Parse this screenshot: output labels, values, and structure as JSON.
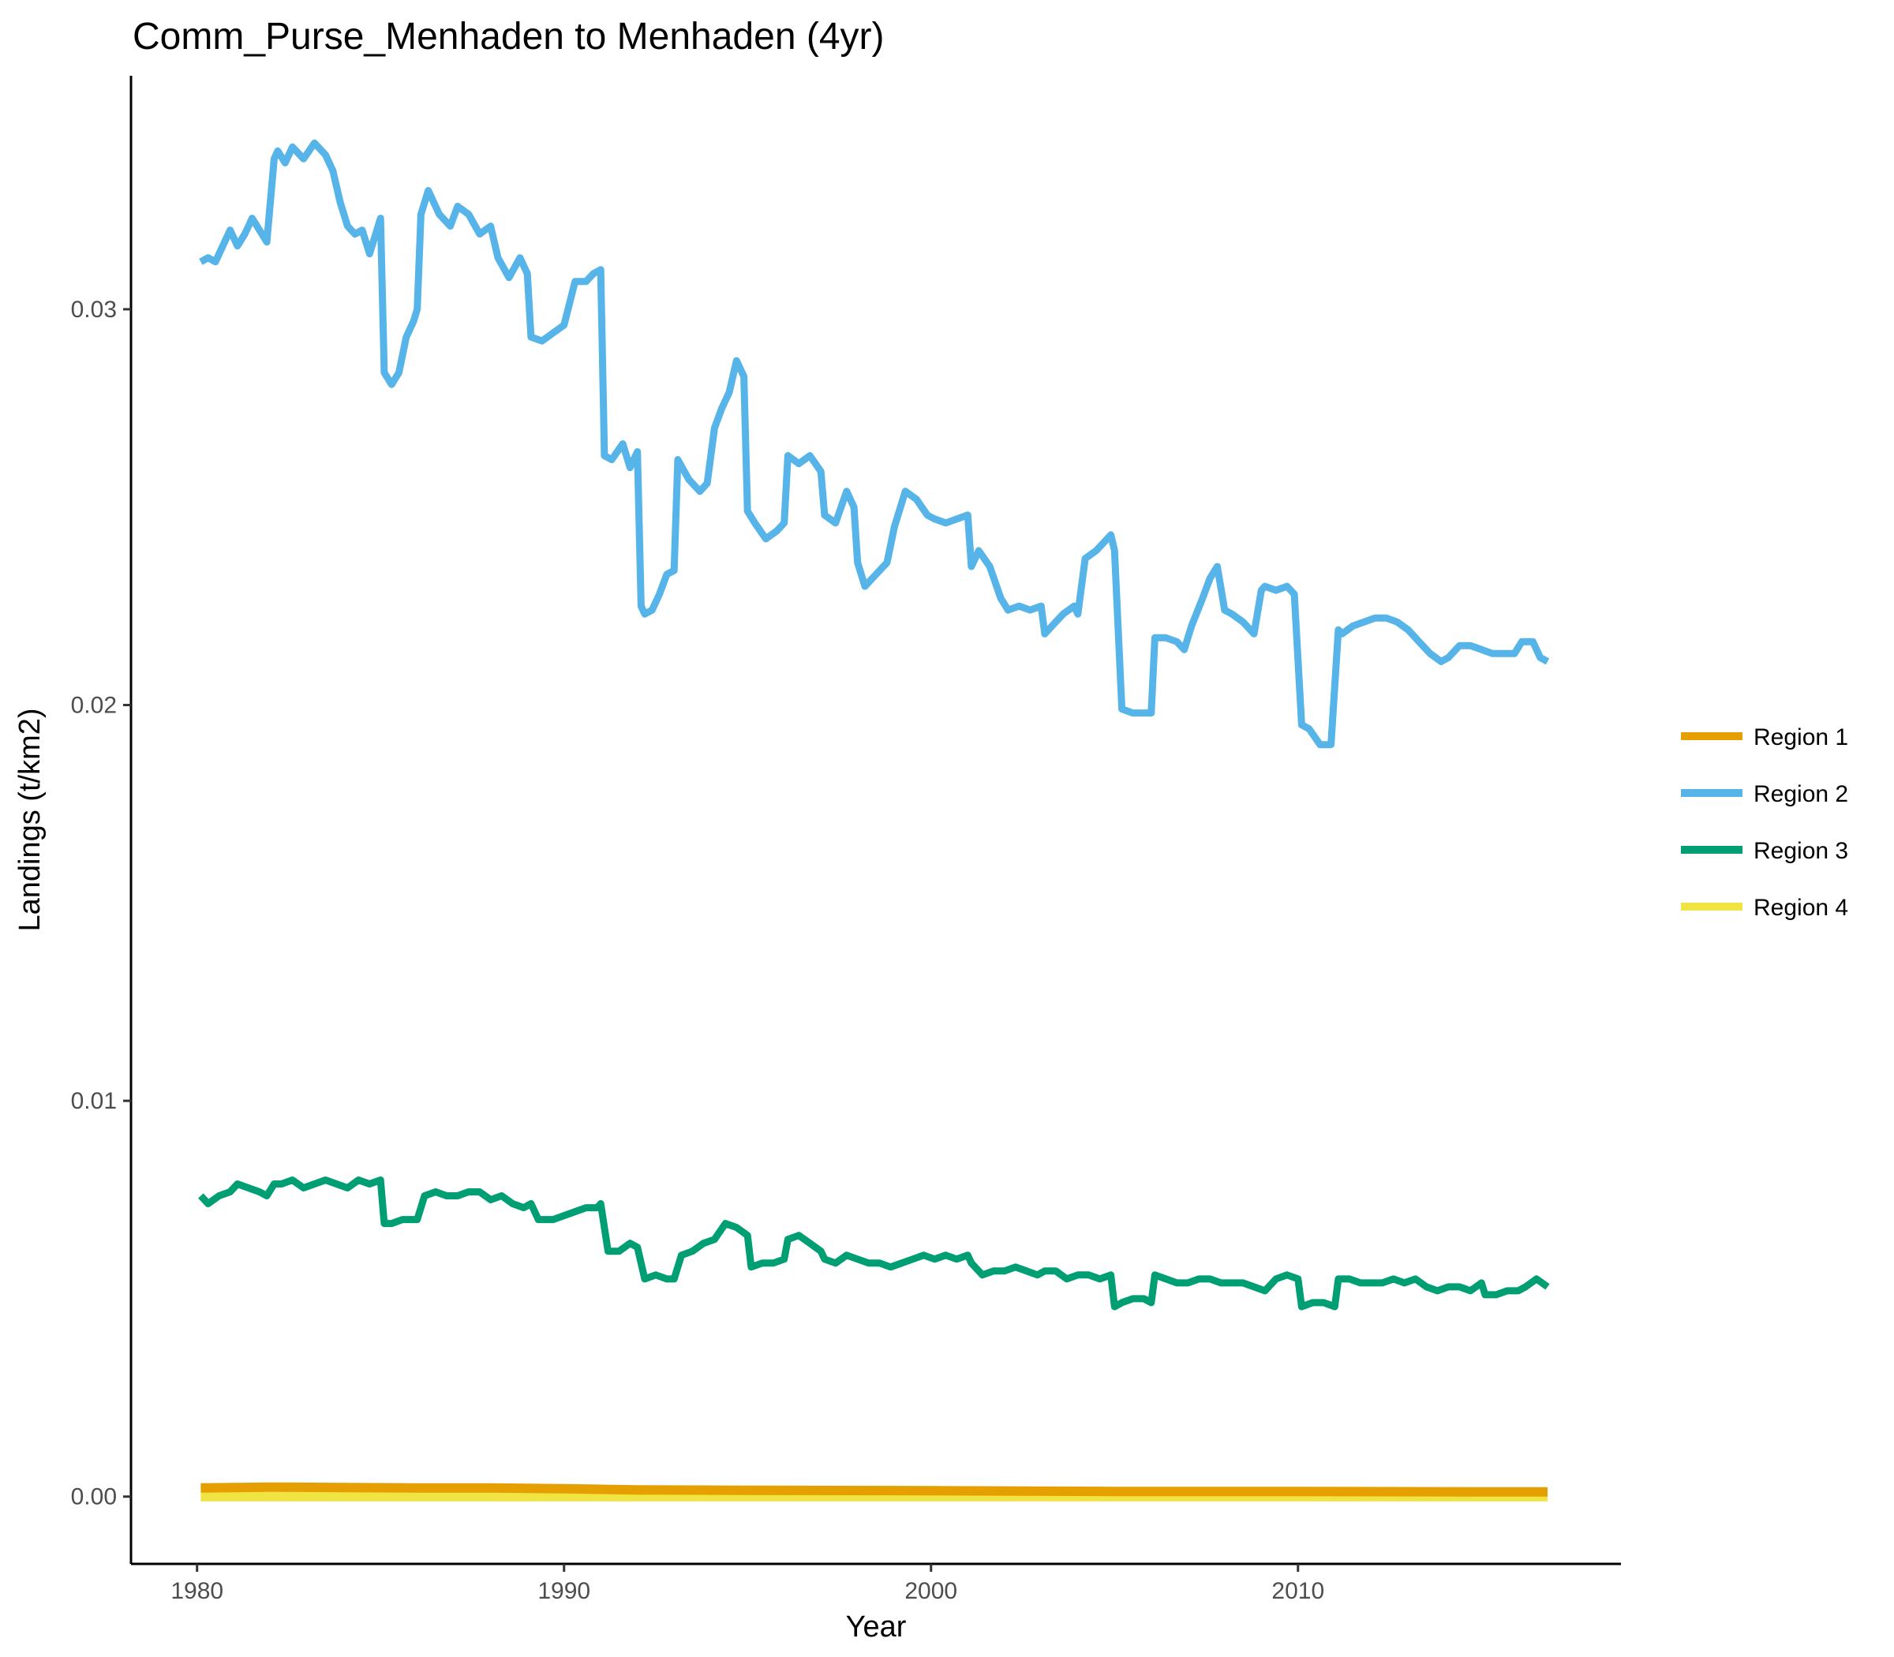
{
  "chart_data": {
    "type": "line",
    "title": "Comm_Purse_Menhaden to Menhaden (4yr)",
    "xlabel": "Year",
    "ylabel": "Landings (t/km2)",
    "xlim": [
      1978.2,
      2018.8
    ],
    "ylim": [
      -0.0017,
      0.0359
    ],
    "x_ticks": [
      1980,
      1990,
      2000,
      2010
    ],
    "x_tick_labels": [
      "1980",
      "1990",
      "2000",
      "2010"
    ],
    "y_ticks": [
      0.0,
      0.01,
      0.02,
      0.03
    ],
    "y_tick_labels": [
      "0.00",
      "0.01",
      "0.02",
      "0.03"
    ],
    "grid": false,
    "legend_position": "right",
    "series": [
      {
        "name": "Region 1",
        "color": "#E69F00",
        "x": [
          1980.1,
          1982,
          1984,
          1986,
          1988,
          1990,
          1992,
          1995,
          2000,
          2005,
          2010,
          2015,
          2016.8
        ],
        "y": [
          0.00022,
          0.00024,
          0.00023,
          0.00022,
          0.00022,
          0.0002,
          0.00017,
          0.00016,
          0.00015,
          0.00013,
          0.00013,
          0.00012,
          0.00012
        ]
      },
      {
        "name": "Region 2",
        "color": "#56B4E9",
        "x": [
          1980.1,
          1980.3,
          1980.5,
          1980.7,
          1980.9,
          1981.1,
          1981.3,
          1981.5,
          1981.7,
          1981.9,
          1982.1,
          1982.2,
          1982.4,
          1982.6,
          1982.9,
          1983.2,
          1983.5,
          1983.7,
          1983.9,
          1984.1,
          1984.3,
          1984.5,
          1984.7,
          1984.9,
          1985.0,
          1985.1,
          1985.3,
          1985.5,
          1985.7,
          1985.9,
          1986.0,
          1986.1,
          1986.3,
          1986.6,
          1986.9,
          1987.1,
          1987.4,
          1987.7,
          1988.0,
          1988.2,
          1988.5,
          1988.8,
          1989.0,
          1989.1,
          1989.4,
          1989.7,
          1990.0,
          1990.3,
          1990.6,
          1990.8,
          1991.0,
          1991.1,
          1991.3,
          1991.6,
          1991.8,
          1992.0,
          1992.1,
          1992.2,
          1992.4,
          1992.6,
          1992.8,
          1993.0,
          1993.1,
          1993.4,
          1993.7,
          1993.9,
          1994.1,
          1994.3,
          1994.5,
          1994.7,
          1994.9,
          1995.0,
          1995.2,
          1995.5,
          1995.8,
          1996.0,
          1996.1,
          1996.4,
          1996.7,
          1997.0,
          1997.1,
          1997.4,
          1997.7,
          1997.9,
          1998.0,
          1998.2,
          1998.5,
          1998.8,
          1999.0,
          1999.3,
          1999.6,
          1999.9,
          2000.1,
          2000.4,
          2000.7,
          2001.0,
          2001.1,
          2001.3,
          2001.6,
          2001.9,
          2002.1,
          2002.4,
          2002.7,
          2003.0,
          2003.1,
          2003.3,
          2003.6,
          2003.9,
          2004.0,
          2004.2,
          2004.5,
          2004.7,
          2004.9,
          2005.0,
          2005.2,
          2005.5,
          2005.8,
          2006.0,
          2006.1,
          2006.4,
          2006.7,
          2006.9,
          2007.1,
          2007.4,
          2007.6,
          2007.8,
          2008.0,
          2008.2,
          2008.5,
          2008.8,
          2009.0,
          2009.1,
          2009.4,
          2009.7,
          2009.9,
          2010.1,
          2010.3,
          2010.6,
          2010.9,
          2011.1,
          2011.2,
          2011.5,
          2011.8,
          2012.1,
          2012.4,
          2012.7,
          2013.0,
          2013.3,
          2013.6,
          2013.9,
          2014.1,
          2014.4,
          2014.7,
          2015.0,
          2015.3,
          2015.6,
          2015.9,
          2016.1,
          2016.4,
          2016.6,
          2016.8
        ],
        "y": [
          0.0312,
          0.0313,
          0.0312,
          0.0316,
          0.032,
          0.0316,
          0.0319,
          0.0323,
          0.032,
          0.0317,
          0.0338,
          0.034,
          0.0337,
          0.0341,
          0.0338,
          0.0342,
          0.0339,
          0.0335,
          0.0327,
          0.0321,
          0.0319,
          0.032,
          0.0314,
          0.032,
          0.0323,
          0.0284,
          0.0281,
          0.0284,
          0.0293,
          0.0297,
          0.03,
          0.0324,
          0.033,
          0.0324,
          0.0321,
          0.0326,
          0.0324,
          0.0319,
          0.0321,
          0.0313,
          0.0308,
          0.0313,
          0.0309,
          0.0293,
          0.0292,
          0.0294,
          0.0296,
          0.0307,
          0.0307,
          0.0309,
          0.031,
          0.0263,
          0.0262,
          0.0266,
          0.026,
          0.0264,
          0.0225,
          0.0223,
          0.0224,
          0.0228,
          0.0233,
          0.0234,
          0.0262,
          0.0257,
          0.0254,
          0.0256,
          0.027,
          0.0275,
          0.0279,
          0.0287,
          0.0283,
          0.0249,
          0.0246,
          0.0242,
          0.0244,
          0.0246,
          0.0263,
          0.0261,
          0.0263,
          0.0259,
          0.0248,
          0.0246,
          0.0254,
          0.025,
          0.0236,
          0.023,
          0.0233,
          0.0236,
          0.0245,
          0.0254,
          0.0252,
          0.0248,
          0.0247,
          0.0246,
          0.0247,
          0.0248,
          0.0235,
          0.0239,
          0.0235,
          0.0227,
          0.0224,
          0.0225,
          0.0224,
          0.0225,
          0.0218,
          0.022,
          0.0223,
          0.0225,
          0.0223,
          0.0237,
          0.0239,
          0.0241,
          0.0243,
          0.0239,
          0.0199,
          0.0198,
          0.0198,
          0.0198,
          0.0217,
          0.0217,
          0.0216,
          0.0214,
          0.022,
          0.0227,
          0.0232,
          0.0235,
          0.0224,
          0.0223,
          0.0221,
          0.0218,
          0.0229,
          0.023,
          0.0229,
          0.023,
          0.0228,
          0.0195,
          0.0194,
          0.019,
          0.019,
          0.0219,
          0.0218,
          0.022,
          0.0221,
          0.0222,
          0.0222,
          0.0221,
          0.0219,
          0.0216,
          0.0213,
          0.0211,
          0.0212,
          0.0215,
          0.0215,
          0.0214,
          0.0213,
          0.0213,
          0.0213,
          0.0216,
          0.0216,
          0.0212,
          0.0211
        ],
        "dense_y": "present"
      },
      {
        "name": "Region 3",
        "color": "#009E73",
        "x": [
          1980.1,
          1980.3,
          1980.6,
          1980.9,
          1981.1,
          1981.4,
          1981.7,
          1981.9,
          1982.1,
          1982.3,
          1982.6,
          1982.9,
          1983.2,
          1983.5,
          1983.8,
          1984.1,
          1984.4,
          1984.7,
          1985.0,
          1985.1,
          1985.3,
          1985.6,
          1985.9,
          1986.0,
          1986.2,
          1986.5,
          1986.8,
          1987.1,
          1987.4,
          1987.7,
          1988.0,
          1988.3,
          1988.6,
          1988.9,
          1989.1,
          1989.3,
          1989.7,
          1990.0,
          1990.3,
          1990.6,
          1990.9,
          1991.0,
          1991.2,
          1991.5,
          1991.8,
          1992.0,
          1992.2,
          1992.5,
          1992.8,
          1993.0,
          1993.2,
          1993.5,
          1993.8,
          1994.1,
          1994.4,
          1994.7,
          1995.0,
          1995.1,
          1995.4,
          1995.7,
          1996.0,
          1996.1,
          1996.4,
          1996.7,
          1997.0,
          1997.1,
          1997.4,
          1997.7,
          1998.0,
          1998.3,
          1998.6,
          1998.9,
          1999.2,
          1999.5,
          1999.8,
          2000.1,
          2000.4,
          2000.7,
          2001.0,
          2001.1,
          2001.4,
          2001.7,
          2002.0,
          2002.3,
          2002.6,
          2002.9,
          2003.1,
          2003.4,
          2003.7,
          2004.0,
          2004.3,
          2004.6,
          2004.9,
          2005.0,
          2005.2,
          2005.5,
          2005.8,
          2006.0,
          2006.1,
          2006.4,
          2006.7,
          2007.0,
          2007.3,
          2007.6,
          2007.9,
          2008.2,
          2008.5,
          2008.8,
          2009.1,
          2009.4,
          2009.7,
          2010.0,
          2010.1,
          2010.4,
          2010.7,
          2011.0,
          2011.1,
          2011.4,
          2011.7,
          2012.0,
          2012.3,
          2012.6,
          2012.9,
          2013.2,
          2013.5,
          2013.8,
          2014.1,
          2014.4,
          2014.7,
          2015.0,
          2015.1,
          2015.4,
          2015.7,
          2016.0,
          2016.2,
          2016.5,
          2016.8
        ],
        "y": [
          0.0076,
          0.0074,
          0.0076,
          0.0077,
          0.0079,
          0.0078,
          0.0077,
          0.0076,
          0.0079,
          0.0079,
          0.008,
          0.0078,
          0.0079,
          0.008,
          0.0079,
          0.0078,
          0.008,
          0.0079,
          0.008,
          0.0069,
          0.0069,
          0.007,
          0.007,
          0.007,
          0.0076,
          0.0077,
          0.0076,
          0.0076,
          0.0077,
          0.0077,
          0.0075,
          0.0076,
          0.0074,
          0.0073,
          0.0074,
          0.007,
          0.007,
          0.0071,
          0.0072,
          0.0073,
          0.0073,
          0.0074,
          0.0062,
          0.0062,
          0.0064,
          0.0063,
          0.0055,
          0.0056,
          0.0055,
          0.0055,
          0.0061,
          0.0062,
          0.0064,
          0.0065,
          0.0069,
          0.0068,
          0.0066,
          0.0058,
          0.0059,
          0.0059,
          0.006,
          0.0065,
          0.0066,
          0.0064,
          0.0062,
          0.006,
          0.0059,
          0.0061,
          0.006,
          0.0059,
          0.0059,
          0.0058,
          0.0059,
          0.006,
          0.0061,
          0.006,
          0.0061,
          0.006,
          0.0061,
          0.0059,
          0.0056,
          0.0057,
          0.0057,
          0.0058,
          0.0057,
          0.0056,
          0.0057,
          0.0057,
          0.0055,
          0.0056,
          0.0056,
          0.0055,
          0.0056,
          0.0048,
          0.0049,
          0.005,
          0.005,
          0.0049,
          0.0056,
          0.0055,
          0.0054,
          0.0054,
          0.0055,
          0.0055,
          0.0054,
          0.0054,
          0.0054,
          0.0053,
          0.0052,
          0.0055,
          0.0056,
          0.0055,
          0.0048,
          0.0049,
          0.0049,
          0.0048,
          0.0055,
          0.0055,
          0.0054,
          0.0054,
          0.0054,
          0.0055,
          0.0054,
          0.0055,
          0.0053,
          0.0052,
          0.0053,
          0.0053,
          0.0052,
          0.0054,
          0.0051,
          0.0051,
          0.0052,
          0.0052,
          0.0053,
          0.0055,
          0.0053
        ]
      },
      {
        "name": "Region 4",
        "color": "#F0E442",
        "x": [
          1980.1,
          1990,
          2000,
          2010,
          2016.8
        ],
        "y": [
          0.0,
          0.0,
          0.0,
          0.0,
          0.0
        ]
      }
    ]
  }
}
